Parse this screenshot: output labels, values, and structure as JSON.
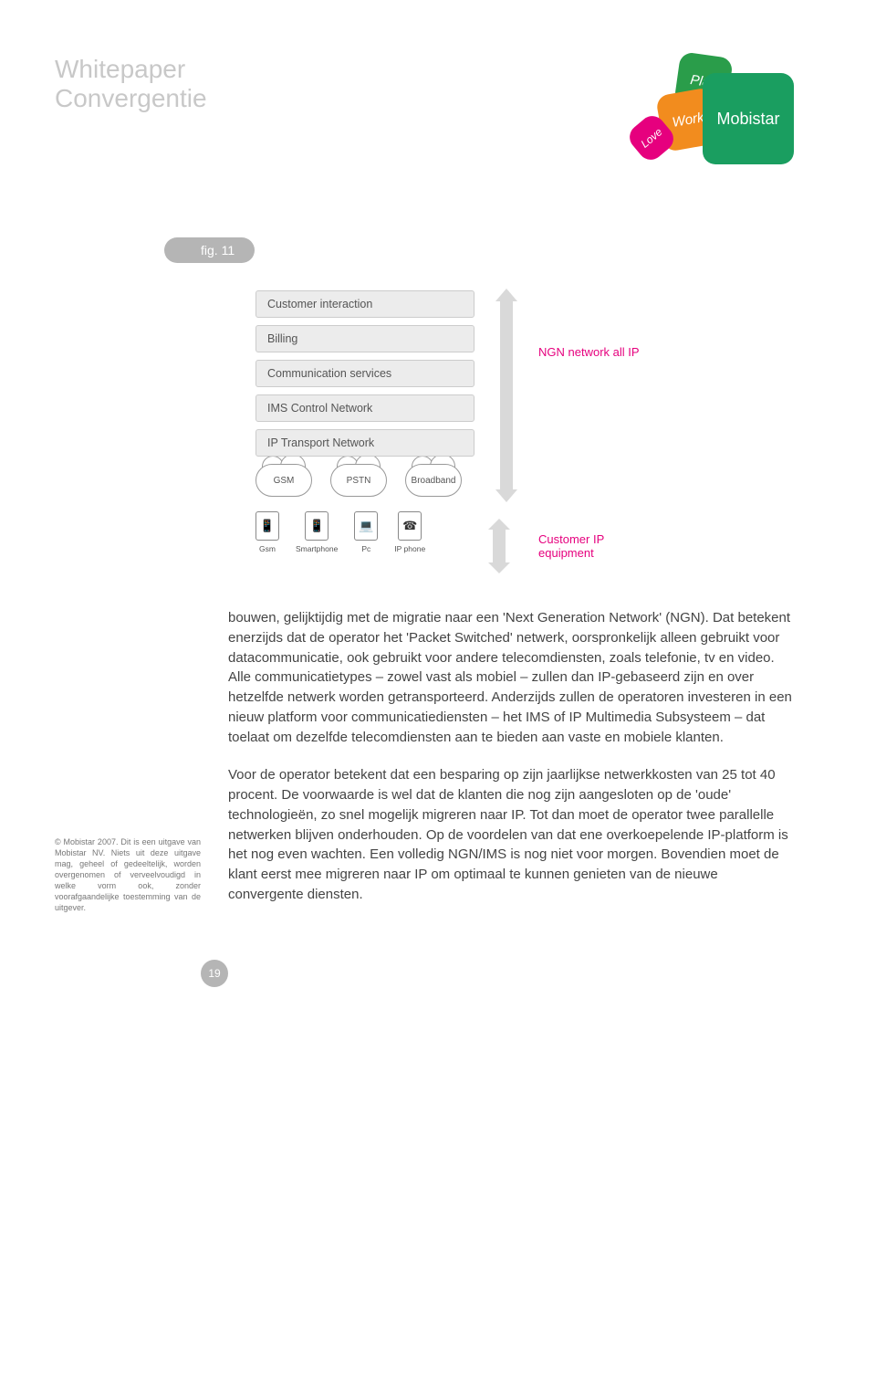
{
  "title": {
    "line1": "Whitepaper",
    "line2": "Convergentie"
  },
  "logo": {
    "play": "Play",
    "work": "Work",
    "love": "Love",
    "brand": "Mobistar"
  },
  "figure": {
    "tag": "fig. 11",
    "layers": [
      "Customer interaction",
      "Billing",
      "Communication services",
      "IMS Control Network",
      "IP Transport Network"
    ],
    "ngn_label": "NGN network all IP",
    "clouds": [
      "GSM",
      "PSTN",
      "Broadband"
    ],
    "devices": [
      {
        "icon": "📱",
        "label": "Gsm"
      },
      {
        "icon": "📱",
        "label": "Smartphone"
      },
      {
        "icon": "💻",
        "label": "Pc"
      },
      {
        "icon": "☎",
        "label": "IP phone"
      }
    ],
    "cust_label": "Customer IP equipment"
  },
  "colors": {
    "ngn": "#e6007e",
    "cust": "#e6007e",
    "title": "#c8c8c8"
  },
  "body": {
    "p1": "bouwen, gelijktijdig met de migratie naar een 'Next Generation Network' (NGN).\nDat betekent enerzijds dat de operator het 'Packet Switched' netwerk, oorspronkelijk alleen gebruikt voor datacommunicatie, ook gebruikt voor andere telecomdiensten, zoals telefonie, tv en video. Alle communicatietypes – zowel vast als mobiel – zullen dan IP-gebaseerd zijn en over hetzelfde netwerk worden getransporteerd. Anderzijds zullen de operatoren investeren in een nieuw platform voor communicatiediensten – het IMS of IP Multimedia Subsysteem – dat toelaat om dezelfde telecomdiensten aan te bieden aan vaste en mobiele klanten.",
    "p2": "Voor de operator betekent dat een besparing op zijn jaarlijkse netwerkkosten van 25 tot 40 procent. De voorwaarde is wel dat de klanten die nog zijn aangesloten op de 'oude' technologieën, zo snel mogelijk migreren naar IP. Tot dan moet de operator twee parallelle netwerken blijven onderhouden. Op de voordelen van dat ene overkoepelende IP-platform is het nog even wachten. Een volledig NGN/IMS is nog niet voor morgen. Bovendien moet de klant eerst mee migreren naar IP om optimaal te kunnen genieten van de nieuwe convergente diensten."
  },
  "copyright": "© Mobistar 2007. Dit is een uitgave van Mobistar NV. Niets uit deze uitgave mag, geheel of gedeeltelijk, worden overgenomen of verveelvoudigd in welke vorm ook, zonder voorafgaandelijke toestemming van de uitgever.",
  "page_number": "19"
}
